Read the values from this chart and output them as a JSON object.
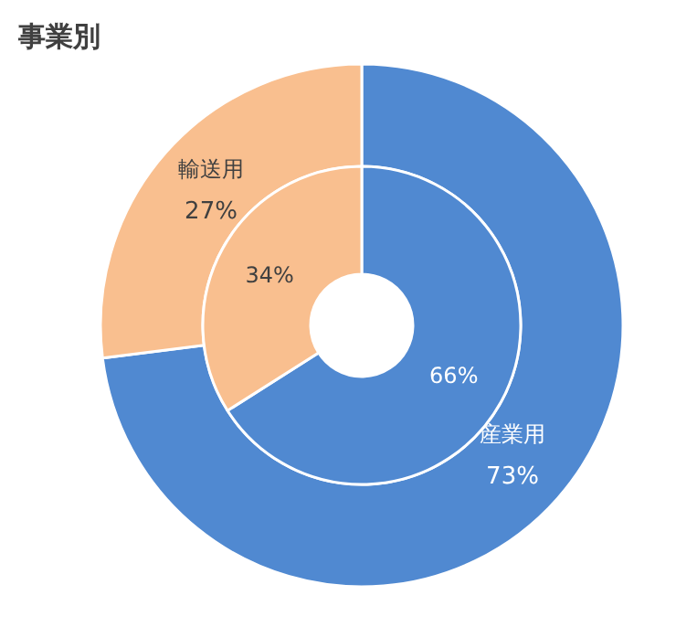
{
  "chart_data": {
    "type": "donut",
    "title": "事業別",
    "categories": [
      "産業用",
      "輸送用"
    ],
    "colors": [
      "#5089d1",
      "#f9bf8f"
    ],
    "series": [
      {
        "values": [
          73,
          27
        ],
        "value_labels": [
          "73%",
          "27%"
        ]
      },
      {
        "values": [
          66,
          34
        ],
        "value_labels": [
          "66%",
          "34%"
        ]
      }
    ]
  }
}
